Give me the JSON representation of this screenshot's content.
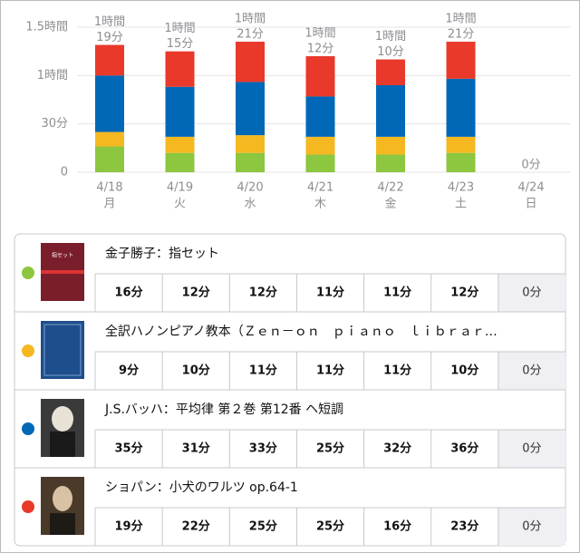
{
  "chart_data": {
    "type": "bar",
    "stacked": true,
    "categories": [
      "4/18",
      "4/19",
      "4/20",
      "4/21",
      "4/22",
      "4/23",
      "4/24"
    ],
    "weekdays": [
      "月",
      "火",
      "水",
      "木",
      "金",
      "土",
      "日"
    ],
    "total_labels": [
      [
        "1時間",
        "19分"
      ],
      [
        "1時間",
        "15分"
      ],
      [
        "1時間",
        "21分"
      ],
      [
        "1時間",
        "12分"
      ],
      [
        "1時間",
        "10分"
      ],
      [
        "1時間",
        "21分"
      ],
      [
        "0分"
      ]
    ],
    "series": [
      {
        "name": "金子勝子：指セット",
        "color": "#8dc63f",
        "values": [
          16,
          12,
          12,
          11,
          11,
          12,
          0
        ],
        "value_labels": [
          "16分",
          "12分",
          "12分",
          "11分",
          "11分",
          "12分",
          "0分"
        ]
      },
      {
        "name": "全訳ハノンピアノ教本（Ｚｅｎ－ｏｎ　ｐｉａｎｏ　ｌｉｂｒａｒ…",
        "color": "#f5b821",
        "values": [
          9,
          10,
          11,
          11,
          11,
          10,
          0
        ],
        "value_labels": [
          "9分",
          "10分",
          "11分",
          "11分",
          "11分",
          "10分",
          "0分"
        ]
      },
      {
        "name": "J.S.バッハ：平均律 第２巻 第12番 ヘ短調",
        "color": "#0068b7",
        "values": [
          35,
          31,
          33,
          25,
          32,
          36,
          0
        ],
        "value_labels": [
          "35分",
          "31分",
          "33分",
          "25分",
          "32分",
          "36分",
          "0分"
        ]
      },
      {
        "name": "ショパン：小犬のワルツ op.64-1",
        "color": "#e8392a",
        "values": [
          19,
          22,
          25,
          25,
          16,
          23,
          0
        ],
        "value_labels": [
          "19分",
          "22分",
          "25分",
          "25分",
          "16分",
          "23分",
          "0分"
        ]
      }
    ],
    "ylim": [
      0,
      90
    ],
    "yticks": [
      0,
      {
        "value": 30,
        "label": "30分"
      },
      {
        "value": 60,
        "label": "1時間"
      },
      {
        "value": 90,
        "label": "1.5時間"
      }
    ],
    "grid": true
  }
}
